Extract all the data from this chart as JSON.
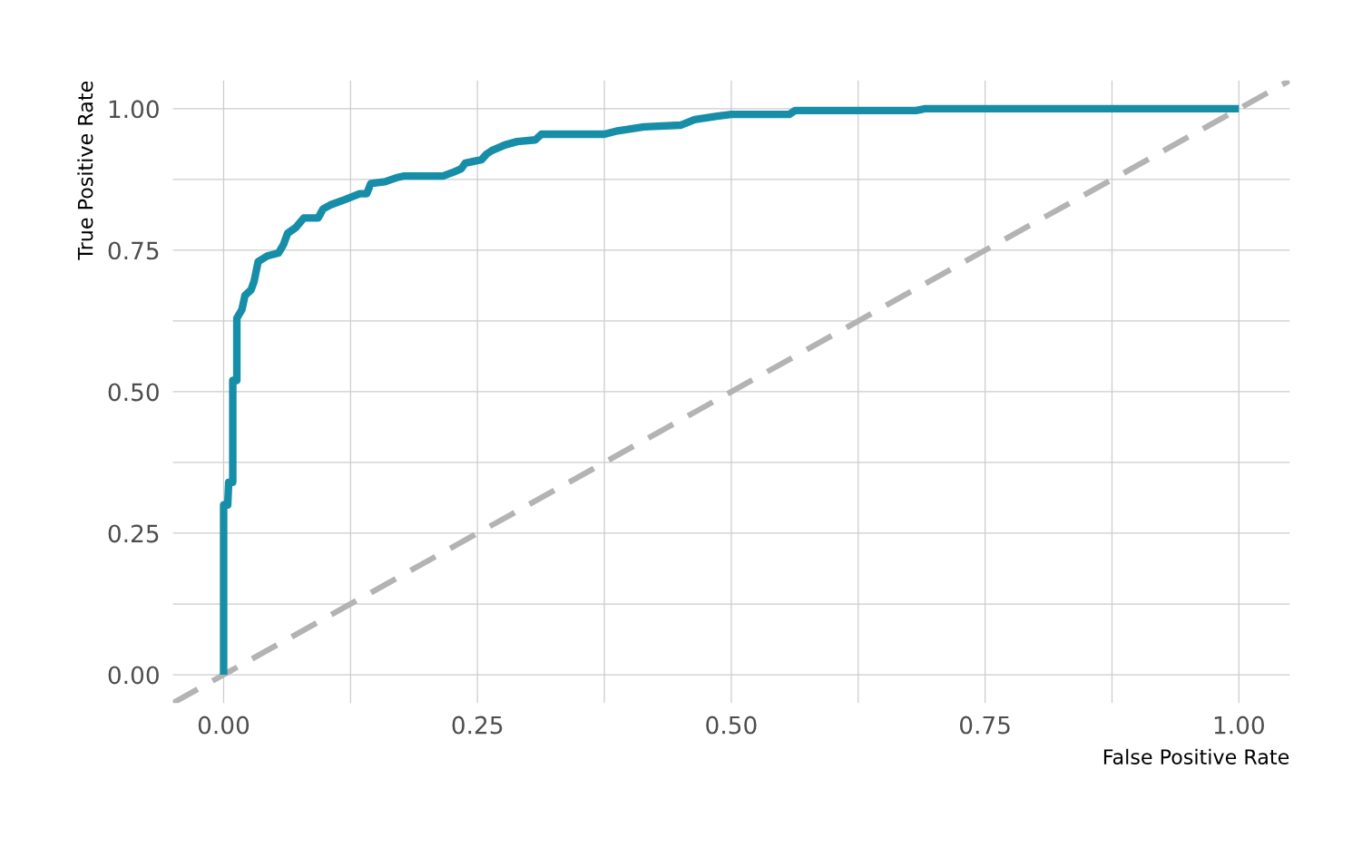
{
  "chart_data": {
    "type": "line",
    "xlabel": "False Positive Rate",
    "ylabel": "True Positive Rate",
    "xlim": [
      -0.05,
      1.05
    ],
    "ylim": [
      -0.05,
      1.05
    ],
    "xticks": [
      {
        "value": 0,
        "label": "0.00"
      },
      {
        "value": 0.125,
        "label": null
      },
      {
        "value": 0.25,
        "label": "0.25"
      },
      {
        "value": 0.375,
        "label": null
      },
      {
        "value": 0.5,
        "label": "0.50"
      },
      {
        "value": 0.625,
        "label": null
      },
      {
        "value": 0.75,
        "label": "0.75"
      },
      {
        "value": 0.875,
        "label": null
      },
      {
        "value": 1,
        "label": "1.00"
      }
    ],
    "yticks": [
      {
        "value": 0,
        "label": "0.00"
      },
      {
        "value": 0.125,
        "label": null
      },
      {
        "value": 0.25,
        "label": "0.25"
      },
      {
        "value": 0.375,
        "label": null
      },
      {
        "value": 0.5,
        "label": "0.50"
      },
      {
        "value": 0.625,
        "label": null
      },
      {
        "value": 0.75,
        "label": "0.75"
      },
      {
        "value": 0.875,
        "label": null
      },
      {
        "value": 1,
        "label": "1.00"
      }
    ],
    "grid": true,
    "series": [
      {
        "color": "#b3b3b3",
        "line_style": "dashed",
        "x": [
          -0.05,
          1.05
        ],
        "values": [
          -0.05,
          1.05
        ]
      },
      {
        "color": "#178ea8",
        "line_style": "solid",
        "x": [
          0,
          0,
          0.004,
          0.005,
          0.009,
          0.009,
          0.013,
          0.013,
          0.018,
          0.021,
          0.027,
          0.03,
          0.034,
          0.043,
          0.054,
          0.059,
          0.063,
          0.071,
          0.079,
          0.093,
          0.098,
          0.105,
          0.12,
          0.134,
          0.141,
          0.145,
          0.159,
          0.17,
          0.177,
          0.216,
          0.225,
          0.234,
          0.238,
          0.254,
          0.259,
          0.264,
          0.277,
          0.289,
          0.307,
          0.313,
          0.375,
          0.388,
          0.414,
          0.45,
          0.464,
          0.486,
          0.5,
          0.557,
          0.563,
          0.682,
          0.691,
          1.0
        ],
        "values": [
          0,
          0.3,
          0.3,
          0.34,
          0.34,
          0.52,
          0.52,
          0.63,
          0.645,
          0.67,
          0.68,
          0.695,
          0.73,
          0.74,
          0.745,
          0.76,
          0.78,
          0.79,
          0.807,
          0.807,
          0.823,
          0.83,
          0.84,
          0.85,
          0.85,
          0.868,
          0.871,
          0.878,
          0.881,
          0.881,
          0.887,
          0.894,
          0.904,
          0.91,
          0.92,
          0.926,
          0.936,
          0.942,
          0.945,
          0.955,
          0.955,
          0.961,
          0.968,
          0.971,
          0.981,
          0.987,
          0.99,
          0.99,
          0.997,
          0.997,
          1.0,
          1.0
        ]
      }
    ]
  }
}
